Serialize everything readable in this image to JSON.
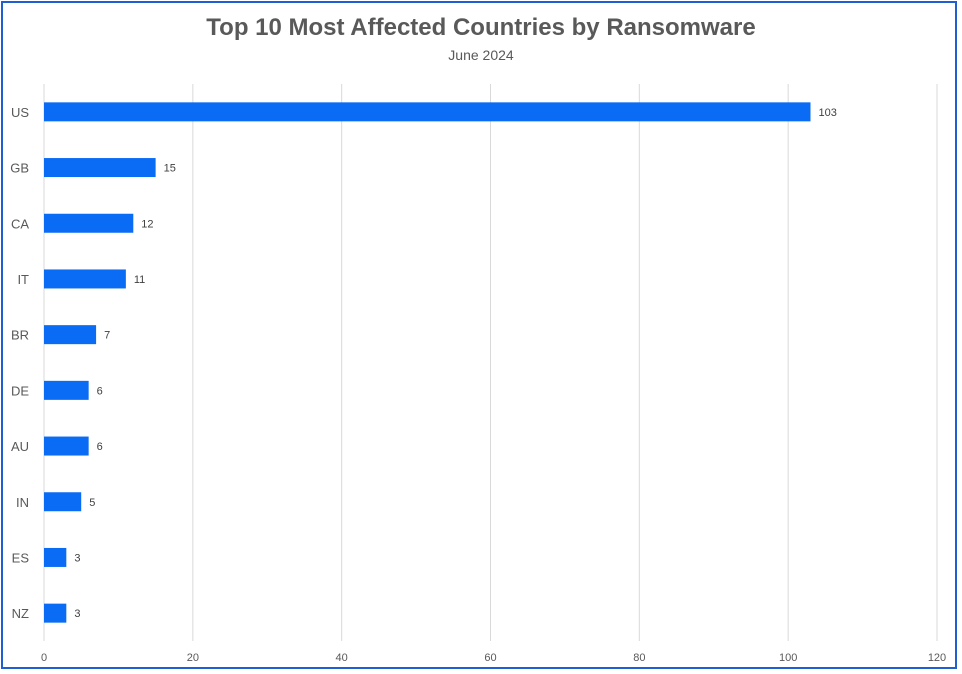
{
  "chart_data": {
    "type": "bar",
    "orientation": "horizontal",
    "title": "Top 10 Most Affected Countries by Ransomware",
    "subtitle": "June 2024",
    "categories": [
      "US",
      "GB",
      "CA",
      "IT",
      "BR",
      "DE",
      "AU",
      "IN",
      "ES",
      "NZ"
    ],
    "values": [
      103,
      15,
      12,
      11,
      7,
      6,
      6,
      5,
      3,
      3
    ],
    "xlim": [
      0,
      120
    ],
    "xticks": [
      0,
      20,
      40,
      60,
      80,
      100,
      120
    ],
    "xlabel": "",
    "ylabel": "",
    "grid": "vertical",
    "legend": "none",
    "data_labels": true
  },
  "colors": {
    "bar": "#0a6cf5",
    "frame": "#1f5fd1",
    "grid": "#d9d9d9"
  }
}
